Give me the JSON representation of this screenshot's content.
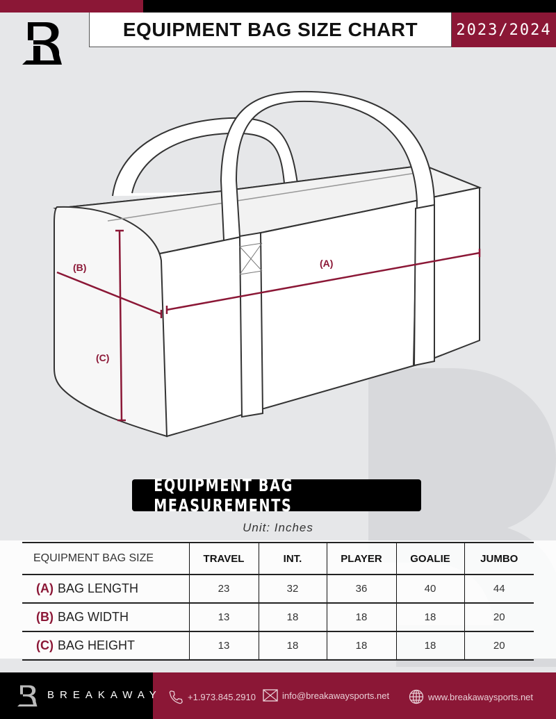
{
  "header": {
    "title": "EQUIPMENT BAG SIZE CHART",
    "season": "2023/2024",
    "logo_letter": "B"
  },
  "diagram": {
    "labels": {
      "a": "(A)",
      "b": "(B)",
      "c": "(C)"
    },
    "accent_color": "#8b1736"
  },
  "measurements": {
    "title": "EQUIPMENT BAG MEASUREMENTS",
    "unit": "Unit: Inches"
  },
  "table": {
    "headers": [
      "EQUIPMENT BAG SIZE",
      "TRAVEL",
      "INT.",
      "PLAYER",
      "GOALIE",
      "JUMBO"
    ],
    "rows": [
      {
        "letter": "(A)",
        "label": "BAG LENGTH",
        "values": [
          "23",
          "32",
          "36",
          "40",
          "44"
        ]
      },
      {
        "letter": "(B)",
        "label": "BAG WIDTH",
        "values": [
          "13",
          "18",
          "18",
          "18",
          "20"
        ]
      },
      {
        "letter": "(C)",
        "label": "BAG HEIGHT",
        "values": [
          "13",
          "18",
          "18",
          "18",
          "20"
        ]
      }
    ]
  },
  "footer": {
    "brand": "BREAKAWAY",
    "phone": "+1.973.845.2910",
    "email": "info@breakawaysports.net",
    "website": "www.breakawaysports.net",
    "icons": [
      "phone-icon",
      "mail-icon",
      "globe-icon"
    ]
  }
}
